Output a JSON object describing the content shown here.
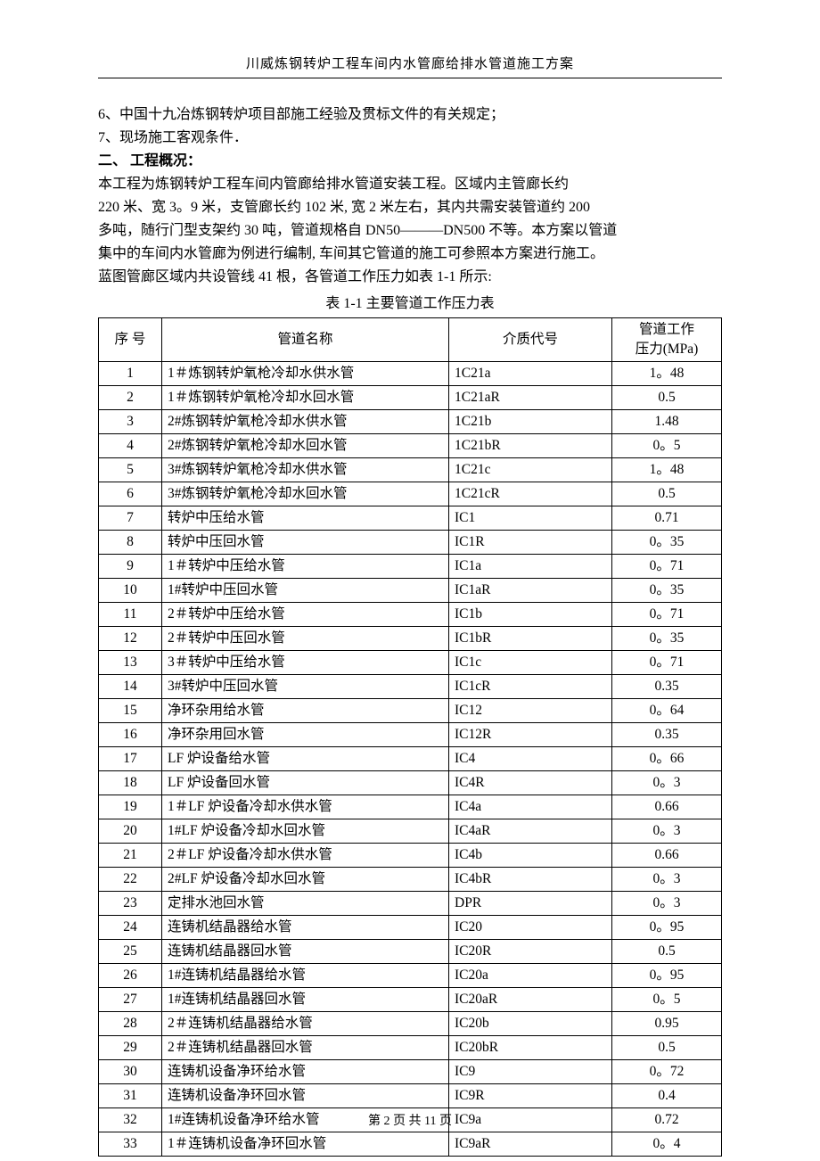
{
  "header": {
    "title": "川威炼钢转炉工程车间内水管廊给排水管道施工方案"
  },
  "paragraphs": {
    "p1": "6、中国十九冶炼钢转炉项目部施工经验及贯标文件的有关规定；",
    "p2": "7、现场施工客观条件．",
    "section_heading": "二、  工程概况：",
    "p3": "本工程为炼钢转炉工程车间内管廊给排水管道安装工程。区域内主管廊长约",
    "p4": "220 米、宽 3。9 米，支管廊长约 102 米, 宽 2 米左右，其内共需安装管道约 200",
    "p5": "多吨，随行门型支架约 30 吨，管道规格自 DN50———DN500 不等。本方案以管道",
    "p6": "集中的车间内水管廊为例进行编制, 车间其它管道的施工可参照本方案进行施工。",
    "p7": "蓝图管廊区域内共设管线 41 根，各管道工作压力如表 1-1 所示:",
    "caption": "表 1-1  主要管道工作压力表"
  },
  "table": {
    "columns": {
      "seq": "序 号",
      "name": "管道名称",
      "code": "介质代号",
      "pressure_line1": "管道工作",
      "pressure_line2": "压力(MPa)"
    },
    "rows": [
      {
        "seq": "1",
        "name": "1＃炼钢转炉氧枪冷却水供水管",
        "code": "1C21a",
        "pressure": "1。48"
      },
      {
        "seq": "2",
        "name": "1＃炼钢转炉氧枪冷却水回水管",
        "code": "1C21aR",
        "pressure": "0.5"
      },
      {
        "seq": "3",
        "name": "2#炼钢转炉氧枪冷却水供水管",
        "code": "1C21b",
        "pressure": "1.48"
      },
      {
        "seq": "4",
        "name": "2#炼钢转炉氧枪冷却水回水管",
        "code": "1C21bR",
        "pressure": "0。5"
      },
      {
        "seq": "5",
        "name": "3#炼钢转炉氧枪冷却水供水管",
        "code": "1C21c",
        "pressure": "1。48"
      },
      {
        "seq": "6",
        "name": "3#炼钢转炉氧枪冷却水回水管",
        "code": "1C21cR",
        "pressure": "0.5"
      },
      {
        "seq": "7",
        "name": "转炉中压给水管",
        "code": "IC1",
        "pressure": "0.71"
      },
      {
        "seq": "8",
        "name": "转炉中压回水管",
        "code": "IC1R",
        "pressure": "0。35"
      },
      {
        "seq": "9",
        "name": "1＃转炉中压给水管",
        "code": "IC1a",
        "pressure": "0。71"
      },
      {
        "seq": "10",
        "name": "1#转炉中压回水管",
        "code": "IC1aR",
        "pressure": "0。35"
      },
      {
        "seq": "11",
        "name": "2＃转炉中压给水管",
        "code": "IC1b",
        "pressure": "0。71"
      },
      {
        "seq": "12",
        "name": "2＃转炉中压回水管",
        "code": "IC1bR",
        "pressure": "0。35"
      },
      {
        "seq": "13",
        "name": "3＃转炉中压给水管",
        "code": "IC1c",
        "pressure": "0。71"
      },
      {
        "seq": "14",
        "name": "3#转炉中压回水管",
        "code": "IC1cR",
        "pressure": "0.35"
      },
      {
        "seq": "15",
        "name": "净环杂用给水管",
        "code": "IC12",
        "pressure": "0。64"
      },
      {
        "seq": "16",
        "name": "净环杂用回水管",
        "code": "IC12R",
        "pressure": "0.35"
      },
      {
        "seq": "17",
        "name": "LF 炉设备给水管",
        "code": "IC4",
        "pressure": "0。66"
      },
      {
        "seq": "18",
        "name": "LF 炉设备回水管",
        "code": "IC4R",
        "pressure": "0。3"
      },
      {
        "seq": "19",
        "name": "1＃LF 炉设备冷却水供水管",
        "code": "IC4a",
        "pressure": "0.66"
      },
      {
        "seq": "20",
        "name": "1#LF 炉设备冷却水回水管",
        "code": "IC4aR",
        "pressure": "0。3"
      },
      {
        "seq": "21",
        "name": "2＃LF 炉设备冷却水供水管",
        "code": "IC4b",
        "pressure": "0.66"
      },
      {
        "seq": "22",
        "name": "2#LF 炉设备冷却水回水管",
        "code": "IC4bR",
        "pressure": "0。3"
      },
      {
        "seq": "23",
        "name": "定排水池回水管",
        "code": "DPR",
        "pressure": "0。3"
      },
      {
        "seq": "24",
        "name": "连铸机结晶器给水管",
        "code": "IC20",
        "pressure": "0。95"
      },
      {
        "seq": "25",
        "name": "连铸机结晶器回水管",
        "code": "IC20R",
        "pressure": "0.5"
      },
      {
        "seq": "26",
        "name": "1#连铸机结晶器给水管",
        "code": "IC20a",
        "pressure": "0。95"
      },
      {
        "seq": "27",
        "name": "1#连铸机结晶器回水管",
        "code": "IC20aR",
        "pressure": "0。5"
      },
      {
        "seq": "28",
        "name": "2＃连铸机结晶器给水管",
        "code": "IC20b",
        "pressure": "0.95"
      },
      {
        "seq": "29",
        "name": "2＃连铸机结晶器回水管",
        "code": "IC20bR",
        "pressure": "0.5"
      },
      {
        "seq": "30",
        "name": "连铸机设备净环给水管",
        "code": "IC9",
        "pressure": "0。72"
      },
      {
        "seq": "31",
        "name": "连铸机设备净环回水管",
        "code": "IC9R",
        "pressure": "0.4"
      },
      {
        "seq": "32",
        "name": "1#连铸机设备净环给水管",
        "code": "IC9a",
        "pressure": "0.72"
      },
      {
        "seq": "33",
        "name": "1＃连铸机设备净环回水管",
        "code": "IC9aR",
        "pressure": "0。4"
      }
    ]
  },
  "footer": {
    "text": "第 2 页 共 11 页"
  }
}
